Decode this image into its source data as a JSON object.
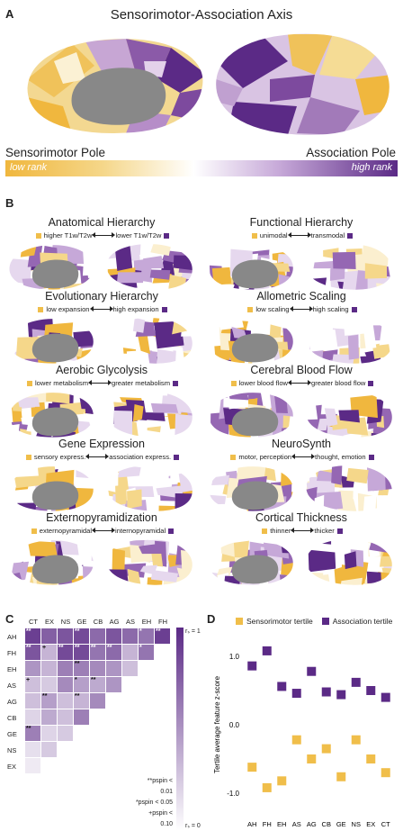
{
  "panel_a": {
    "label": "A",
    "title": "Sensorimotor-Association Axis",
    "pole_left": "Sensorimotor Pole",
    "pole_right": "Association Pole",
    "rank_low": "low rank",
    "rank_high": "high rank"
  },
  "panel_b": {
    "label": "B",
    "maps": [
      {
        "title": "Anatomical Hierarchy",
        "low": "higher T1w/T2w",
        "high": "lower T1w/T2w"
      },
      {
        "title": "Functional Hierarchy",
        "low": "unimodal",
        "high": "transmodal"
      },
      {
        "title": "Evolutionary Hierarchy",
        "low": "low expansion",
        "high": "high expansion"
      },
      {
        "title": "Allometric Scaling",
        "low": "low scaling",
        "high": "high scaling"
      },
      {
        "title": "Aerobic Glycolysis",
        "low": "lower metabolism",
        "high": "greater metabolism"
      },
      {
        "title": "Cerebral Blood Flow",
        "low": "lower blood flow",
        "high": "greater blood flow"
      },
      {
        "title": "Gene Expression",
        "low": "sensory express.",
        "high": "association express."
      },
      {
        "title": "NeuroSynth",
        "low": "motor, perception",
        "high": "thought, emotion"
      },
      {
        "title": "Externopyramidization",
        "low": "externopyramidal",
        "high": "internopyramidal"
      },
      {
        "title": "Cortical Thickness",
        "low": "thinner",
        "high": "thicker"
      }
    ]
  },
  "panel_c": {
    "label": "C",
    "columns": [
      "CT",
      "EX",
      "NS",
      "GE",
      "CB",
      "AG",
      "AS",
      "EH",
      "FH"
    ],
    "rows": [
      "AH",
      "FH",
      "EH",
      "AS",
      "AG",
      "CB",
      "GE",
      "NS",
      "EX"
    ],
    "scale_top": "rₛ = 1",
    "scale_bottom": "rₛ = 0",
    "legend": [
      "**pspin < 0.01",
      "*pspin < 0.05",
      "+pspin < 0.10"
    ],
    "cells": [
      [
        0.9,
        0.75,
        0.8,
        0.85,
        0.7,
        0.8,
        0.7,
        0.65,
        0.9
      ],
      [
        0.8,
        0.35,
        0.85,
        0.85,
        0.65,
        0.7,
        0.35,
        0.65,
        null
      ],
      [
        0.5,
        0.35,
        0.6,
        0.6,
        0.55,
        0.5,
        0.3,
        null,
        null
      ],
      [
        0.3,
        0.25,
        0.55,
        0.45,
        0.4,
        0.5,
        null,
        null,
        null
      ],
      [
        0.3,
        0.45,
        0.3,
        0.35,
        0.55,
        null,
        null,
        null,
        null
      ],
      [
        0.2,
        0.4,
        0.3,
        0.6,
        null,
        null,
        null,
        null,
        null
      ],
      [
        0.6,
        0.2,
        0.25,
        null,
        null,
        null,
        null,
        null,
        null
      ],
      [
        0.15,
        0.25,
        null,
        null,
        null,
        null,
        null,
        null,
        null
      ],
      [
        0.1,
        null,
        null,
        null,
        null,
        null,
        null,
        null,
        null
      ]
    ],
    "stars": [
      [
        "**",
        "",
        "",
        "**",
        "",
        "",
        "",
        "*",
        "**"
      ],
      [
        "**",
        "+",
        "**",
        "**",
        "**",
        "**",
        "",
        "*",
        ""
      ],
      [
        "",
        "",
        "",
        "**",
        "",
        "",
        "",
        "",
        ""
      ],
      [
        "+",
        "",
        "",
        "*",
        "**",
        "",
        "",
        "",
        ""
      ],
      [
        "",
        "**",
        "",
        "**",
        "",
        "",
        "",
        "",
        ""
      ],
      [
        "",
        "",
        "",
        "",
        "",
        "",
        "",
        "",
        ""
      ],
      [
        "**",
        "",
        "",
        "",
        "",
        "",
        "",
        "",
        ""
      ],
      [
        "",
        "",
        "",
        "",
        "",
        "",
        "",
        "",
        ""
      ],
      [
        "",
        "",
        "",
        "",
        "",
        "",
        "",
        "",
        ""
      ]
    ]
  },
  "panel_d": {
    "label": "D",
    "legend_sensorimotor": "Sensorimotor tertile",
    "legend_association": "Association tertile",
    "ylabel": "Tertile average feature z-score",
    "colors": {
      "sensorimotor": "#f0be4a",
      "association": "#5b2a86"
    }
  },
  "chart_data": {
    "type": "scatter",
    "categories": [
      "AH",
      "FH",
      "EH",
      "AS",
      "AG",
      "CB",
      "GE",
      "NS",
      "EX",
      "CT"
    ],
    "series": [
      {
        "name": "Sensorimotor tertile",
        "values": [
          -0.62,
          -0.92,
          -0.82,
          -0.22,
          -0.5,
          -0.35,
          -0.76,
          -0.22,
          -0.5,
          -0.7
        ]
      },
      {
        "name": "Association tertile",
        "values": [
          0.86,
          1.08,
          0.56,
          0.46,
          0.78,
          0.48,
          0.44,
          0.62,
          0.5,
          0.4
        ]
      }
    ],
    "yticks": [
      "1.0",
      "0.0",
      "-1.0"
    ],
    "ylim": [
      -1.25,
      1.25
    ],
    "ylabel": "Tertile average feature z-score"
  }
}
